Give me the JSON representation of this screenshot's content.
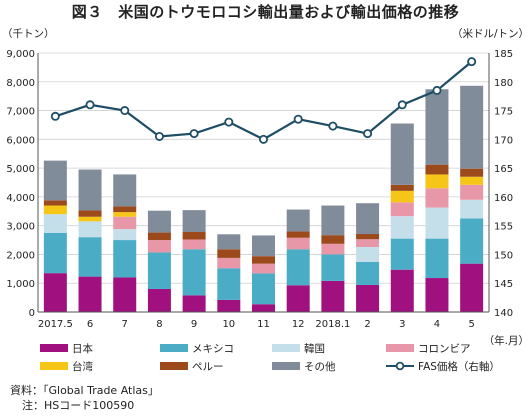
{
  "title": "図３　米国のトウモロコシ輸出量および輸出価格の推移",
  "source_label": "資料：「Global Trade Atlas」",
  "note_label": "注：HSコード100590",
  "chart_data": {
    "type": "bar",
    "stacked": true,
    "categories": [
      "2017.5",
      "6",
      "7",
      "8",
      "9",
      "10",
      "11",
      "12",
      "2018.1",
      "2",
      "3",
      "4",
      "5"
    ],
    "x_unit": "（年.月）",
    "y_left_unit": "（千トン）",
    "y_right_unit": "（米ドル/トン）",
    "y_left_range": [
      0,
      9000
    ],
    "y_left_ticks": [
      "0",
      "1,000",
      "2,000",
      "3,000",
      "4,000",
      "5,000",
      "6,000",
      "7,000",
      "8,000",
      "9,000"
    ],
    "y_right_range": [
      140,
      185
    ],
    "y_right_ticks": [
      "140",
      "145",
      "150",
      "155",
      "160",
      "165",
      "170",
      "175",
      "180",
      "185"
    ],
    "grid": true,
    "legend_position": "bottom",
    "series": [
      {
        "name": "日本",
        "color": "#a0107e",
        "values": [
          1350,
          1230,
          1200,
          800,
          580,
          420,
          270,
          930,
          1080,
          940,
          1470,
          1180,
          1680
        ]
      },
      {
        "name": "メキシコ",
        "color": "#4bacc6",
        "values": [
          1400,
          1370,
          1300,
          1270,
          1600,
          1100,
          1070,
          1250,
          920,
          800,
          1080,
          1370,
          1570
        ]
      },
      {
        "name": "韓国",
        "color": "#c5dfea",
        "values": [
          650,
          550,
          380,
          0,
          0,
          0,
          0,
          0,
          0,
          520,
          780,
          1080,
          650
        ]
      },
      {
        "name": "コロンビア",
        "color": "#e897a9",
        "values": [
          0,
          0,
          430,
          430,
          340,
          360,
          340,
          400,
          370,
          270,
          480,
          670,
          520
        ]
      },
      {
        "name": "台湾",
        "color": "#f5c518",
        "values": [
          300,
          160,
          160,
          0,
          0,
          0,
          0,
          0,
          0,
          0,
          400,
          480,
          280
        ]
      },
      {
        "name": "ペルー",
        "color": "#9c4a1c",
        "values": [
          180,
          220,
          200,
          260,
          260,
          300,
          260,
          220,
          300,
          180,
          210,
          340,
          280
        ]
      },
      {
        "name": "その他",
        "color": "#808c99",
        "values": [
          1380,
          1420,
          1110,
          760,
          760,
          520,
          720,
          760,
          1030,
          1070,
          2130,
          2620,
          2880
        ]
      }
    ],
    "line_series": {
      "name": "FAS価格（右軸）",
      "color": "#1e4d66",
      "axis": "right",
      "values": [
        174,
        176,
        175,
        170.5,
        171,
        173,
        170,
        173.5,
        172.3,
        171,
        176,
        178.5,
        183.5
      ]
    }
  }
}
